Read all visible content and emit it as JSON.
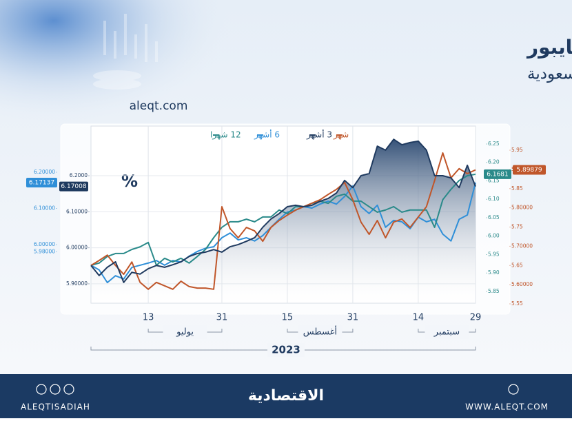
{
  "chart_data": {
    "type": "line",
    "title": "حركة آجال السايبور",
    "subtitle": "بين البنوك السعودية",
    "source": "aleqt.com",
    "unit_label": "%",
    "grid": true,
    "categories": [
      null,
      null,
      null,
      null,
      null,
      null,
      null,
      "13",
      null,
      null,
      null,
      null,
      null,
      null,
      null,
      null,
      "31",
      null,
      null,
      null,
      null,
      null,
      null,
      null,
      "15",
      null,
      null,
      null,
      null,
      null,
      null,
      null,
      "31",
      null,
      null,
      null,
      null,
      null,
      null,
      null,
      "14",
      null,
      null,
      null,
      null,
      null,
      null,
      "29"
    ],
    "month_labels": [
      "يوليو",
      "أغسطس",
      "سبتمبر"
    ],
    "year": "2023",
    "series": [
      {
        "name": "شهر",
        "color": "#c0562a",
        "ylim": [
          5.5518,
          6.0128
        ],
        "yticks": [
          5.95,
          {
            "value": 5.9,
            "label": "5.90000"
          },
          5.85,
          {
            "value": 5.8,
            "label": "5.80000"
          },
          5.75,
          {
            "value": 5.7,
            "label": "5.70000"
          },
          5.65,
          {
            "value": 5.6,
            "label": "5.60000"
          },
          5.55
        ],
        "ytick_labels_note": null,
        "values": [
          5.65,
          5.663,
          5.677,
          5.65,
          5.627,
          5.659,
          5.606,
          5.588,
          5.606,
          5.597,
          5.588,
          5.609,
          5.595,
          5.591,
          5.591,
          5.588,
          5.803,
          5.746,
          5.722,
          5.749,
          5.74,
          5.713,
          5.749,
          5.767,
          5.781,
          5.794,
          5.803,
          5.812,
          5.821,
          5.835,
          5.848,
          5.866,
          5.821,
          5.763,
          5.731,
          5.767,
          5.722,
          5.763,
          5.771,
          5.749,
          5.776,
          5.803,
          5.871,
          5.943,
          5.878,
          5.902,
          5.889,
          5.89879
        ]
      },
      {
        "name": "3 أشهر",
        "color": "#1f3a5f",
        "ylim": [
          5.8463,
          6.3377
        ],
        "yticks": [
          {
            "value": 6.2,
            "label": "6.2000"
          },
          {
            "value": 6.1,
            "label": "6.10000"
          },
          {
            "value": 6.0,
            "label": "6.00000"
          },
          {
            "value": 5.9,
            "label": "5.90000"
          }
        ],
        "values": [
          5.951,
          5.923,
          5.946,
          5.961,
          5.904,
          5.932,
          5.927,
          5.942,
          5.951,
          5.946,
          5.953,
          5.961,
          5.976,
          5.984,
          5.988,
          5.995,
          5.988,
          6.003,
          6.009,
          6.018,
          6.028,
          6.057,
          6.08,
          6.095,
          6.114,
          6.118,
          6.114,
          6.118,
          6.129,
          6.137,
          6.152,
          6.187,
          6.167,
          6.2,
          6.206,
          6.282,
          6.271,
          6.301,
          6.286,
          6.292,
          6.296,
          6.271,
          6.2,
          6.2,
          6.194,
          6.167,
          6.229,
          6.17008
        ]
      },
      {
        "name": "6 أشهر",
        "color": "#2f8fd8",
        "ylim": [
          5.8381,
          6.3276
        ],
        "yticks": [
          {
            "value": 6.2,
            "label": "6.20000"
          },
          {
            "value": 6.1,
            "label": "6.10000"
          },
          {
            "value": 6.0,
            "label": "6.00000"
          },
          {
            "value": 5.98,
            "label": "5.98000"
          }
        ],
        "values": [
          5.943,
          5.93,
          5.895,
          5.914,
          5.905,
          5.937,
          5.943,
          5.949,
          5.956,
          5.943,
          5.956,
          5.952,
          5.968,
          5.981,
          5.99,
          5.994,
          6.019,
          6.032,
          6.013,
          6.019,
          6.01,
          6.025,
          6.048,
          6.07,
          6.09,
          6.095,
          6.105,
          6.101,
          6.112,
          6.12,
          6.112,
          6.133,
          6.162,
          6.105,
          6.086,
          6.109,
          6.048,
          6.067,
          6.063,
          6.044,
          6.076,
          6.063,
          6.07,
          6.029,
          6.01,
          6.07,
          6.082,
          6.17137
        ]
      },
      {
        "name": "12 شهرا",
        "color": "#2a8a8a",
        "ylim": [
          5.8182,
          6.2986
        ],
        "yticks": [
          6.25,
          {
            "value": 6.2,
            "label": "6.20"
          },
          6.15,
          {
            "value": 6.1,
            "label": "6.10"
          },
          6.05,
          {
            "value": 6.0,
            "label": "6.00"
          },
          5.95,
          {
            "value": 5.9,
            "label": "5.90"
          },
          5.85
        ],
        "values": [
          5.921,
          5.927,
          5.945,
          5.953,
          5.953,
          5.964,
          5.971,
          5.983,
          5.921,
          5.94,
          5.93,
          5.94,
          5.927,
          5.945,
          5.964,
          5.996,
          6.024,
          6.039,
          6.039,
          6.046,
          6.039,
          6.052,
          6.052,
          6.071,
          6.061,
          6.08,
          6.08,
          6.089,
          6.095,
          6.089,
          6.108,
          6.114,
          6.095,
          6.095,
          6.08,
          6.065,
          6.071,
          6.08,
          6.065,
          6.071,
          6.071,
          6.071,
          6.024,
          6.099,
          6.127,
          6.151,
          6.164,
          6.1681
        ]
      }
    ]
  },
  "footer": {
    "brand": "الاقتصادية",
    "social_handle": "ALEQTISADIAH",
    "website": "WWW.ALEQT.COM"
  }
}
